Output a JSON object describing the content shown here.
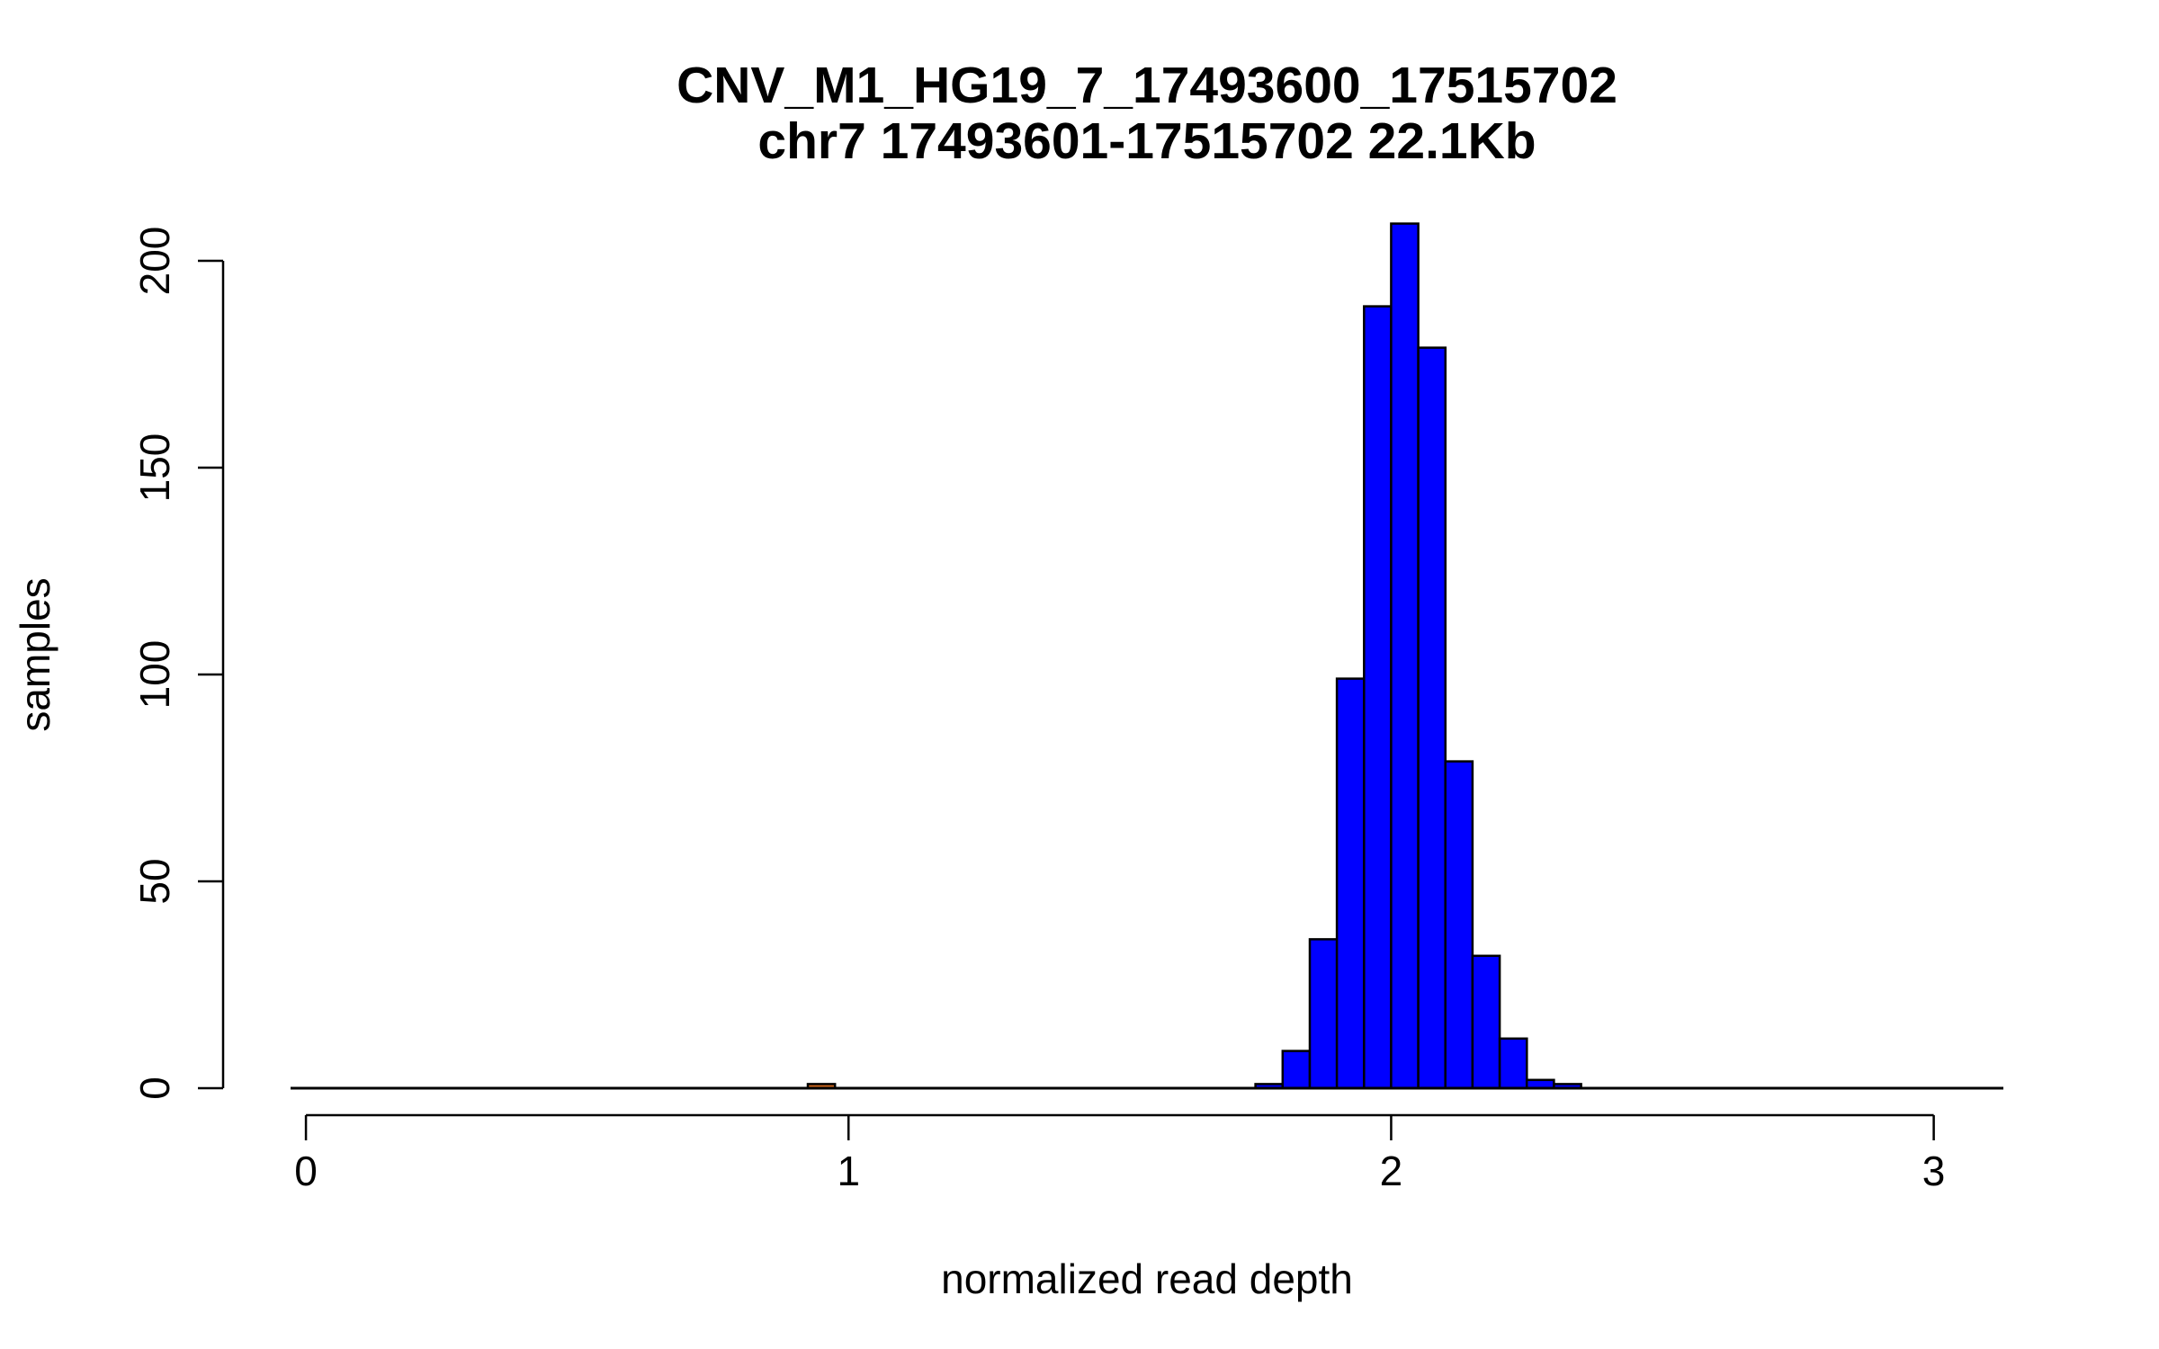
{
  "chart_data": {
    "type": "bar",
    "title": "CNV_M1_HG19_7_17493600_17515702",
    "subtitle": "chr7 17493601-17515702 22.1Kb",
    "xlabel": "normalized read depth",
    "ylabel": "samples",
    "xlim": [
      -0.025,
      3.125
    ],
    "ylim": [
      0,
      200
    ],
    "x_ticks": [
      "0",
      "1",
      "2",
      "3"
    ],
    "y_ticks": [
      "0",
      "50",
      "100",
      "150",
      "200"
    ],
    "grid": false,
    "legend": "none",
    "bin_width": 0.05,
    "series": [
      {
        "color": "#0000ff",
        "bins": [
          {
            "x0": 1.75,
            "x1": 1.8,
            "count": 1
          },
          {
            "x0": 1.8,
            "x1": 1.85,
            "count": 9
          },
          {
            "x0": 1.85,
            "x1": 1.9,
            "count": 36
          },
          {
            "x0": 1.9,
            "x1": 1.95,
            "count": 99
          },
          {
            "x0": 1.95,
            "x1": 2.0,
            "count": 189
          },
          {
            "x0": 2.0,
            "x1": 2.05,
            "count": 209
          },
          {
            "x0": 2.05,
            "x1": 2.1,
            "count": 179
          },
          {
            "x0": 2.1,
            "x1": 2.15,
            "count": 79
          },
          {
            "x0": 2.15,
            "x1": 2.2,
            "count": 32
          },
          {
            "x0": 2.2,
            "x1": 2.25,
            "count": 12
          },
          {
            "x0": 2.25,
            "x1": 2.3,
            "count": 2
          },
          {
            "x0": 2.3,
            "x1": 2.35,
            "count": 1
          }
        ]
      },
      {
        "color": "#d2691e",
        "bins": [
          {
            "x0": 0.925,
            "x1": 0.975,
            "count": 1
          }
        ]
      }
    ]
  }
}
